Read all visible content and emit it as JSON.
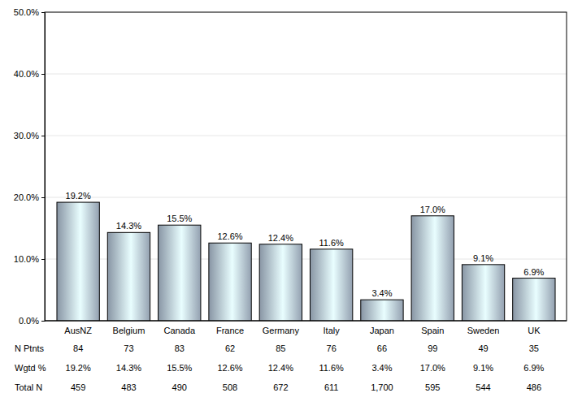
{
  "chart_data": {
    "type": "bar",
    "categories": [
      "AusNZ",
      "Belgium",
      "Canada",
      "France",
      "Germany",
      "Italy",
      "Japan",
      "Spain",
      "Sweden",
      "UK"
    ],
    "values": [
      19.2,
      14.3,
      15.5,
      12.6,
      12.4,
      11.6,
      3.4,
      17.0,
      9.1,
      6.9
    ],
    "value_labels": [
      "19.2%",
      "14.3%",
      "15.5%",
      "12.6%",
      "12.4%",
      "11.6%",
      "3.4%",
      "17.0%",
      "9.1%",
      "6.9%"
    ],
    "data_labels": true,
    "color": "#a9b8cb",
    "ylim": [
      0,
      50
    ],
    "yticks": [
      {
        "value": 0,
        "label": "0.0%"
      },
      {
        "value": 10,
        "label": "10.0%"
      },
      {
        "value": 20,
        "label": "20.0%"
      },
      {
        "value": 30,
        "label": "30.0%"
      },
      {
        "value": 40,
        "label": "40.0%"
      },
      {
        "value": 50,
        "label": "50.0%"
      }
    ],
    "grid": true,
    "table_rows": [
      {
        "label": "N Ptnts",
        "values": [
          84,
          73,
          83,
          62,
          85,
          76,
          66,
          99,
          49,
          35
        ]
      },
      {
        "label": "Wgtd %",
        "values": [
          19.2,
          14.3,
          15.5,
          12.6,
          12.4,
          11.6,
          3.4,
          17.0,
          9.1,
          6.9
        ],
        "value_labels": [
          "19.2%",
          "14.3%",
          "15.5%",
          "12.6%",
          "12.4%",
          "11.6%",
          "3.4%",
          "17.0%",
          "9.1%",
          "6.9%"
        ]
      },
      {
        "label": "Total N",
        "values": [
          459,
          483,
          490,
          508,
          672,
          611,
          1700,
          595,
          544,
          486
        ],
        "value_labels": [
          "459",
          "483",
          "490",
          "508",
          "672",
          "611",
          "1,700",
          "595",
          "544",
          "486"
        ]
      }
    ]
  }
}
